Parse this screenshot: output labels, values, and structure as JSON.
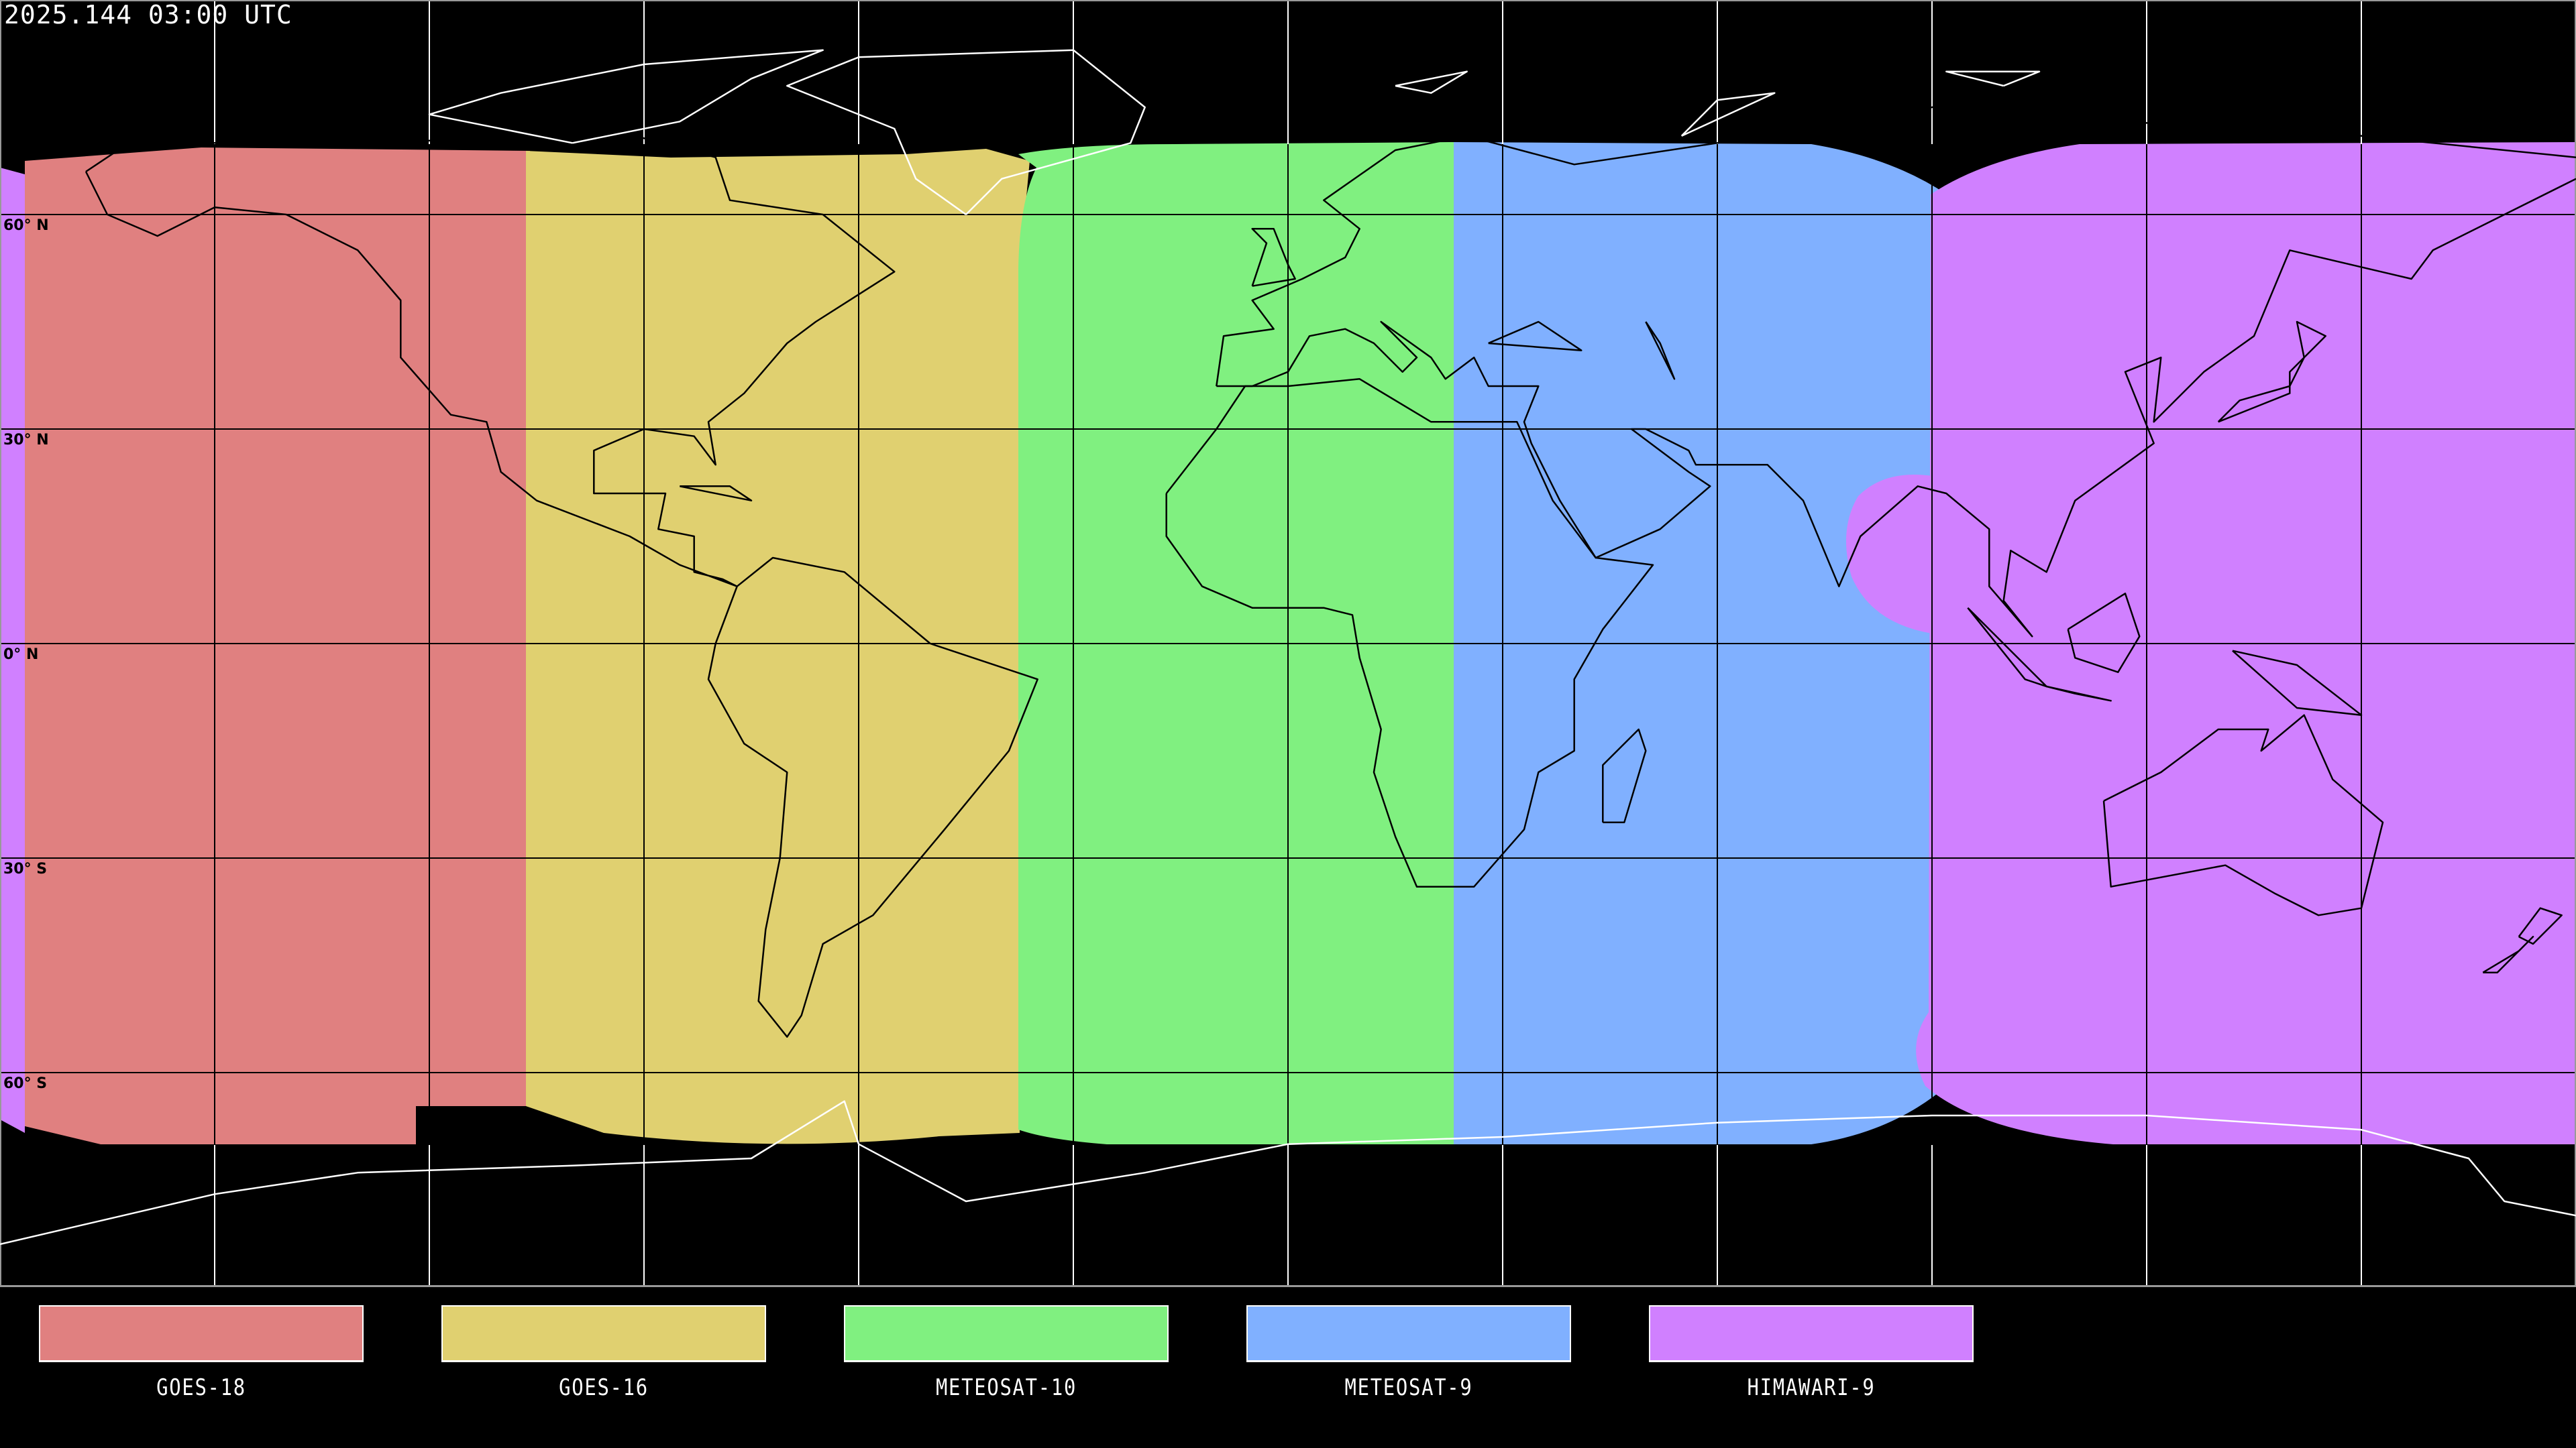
{
  "header": {
    "timestamp": "2025.144 03:00 UTC"
  },
  "map": {
    "projection": "equirectangular",
    "lat_labels": [
      "60° N",
      "30° N",
      "0° N",
      "30° S",
      "60° S"
    ],
    "grid_spacing_deg": 30
  },
  "legend": [
    {
      "label": "GOES-18",
      "color": "#e08080"
    },
    {
      "label": "GOES-16",
      "color": "#e0d070"
    },
    {
      "label": "METEOSAT-10",
      "color": "#80f080"
    },
    {
      "label": "METEOSAT-9",
      "color": "#80b0ff"
    },
    {
      "label": "HIMAWARI-9",
      "color": "#d080ff"
    }
  ]
}
